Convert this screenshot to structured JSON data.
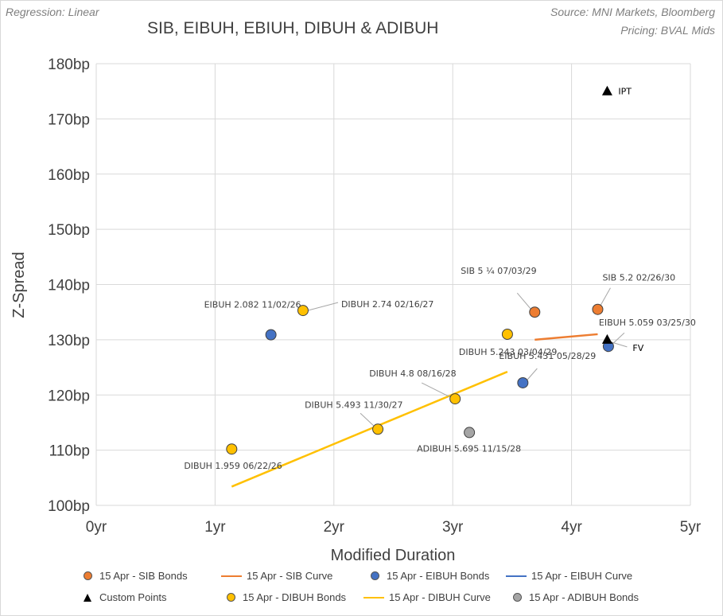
{
  "header": {
    "regression": "Regression: Linear",
    "source": "Source: MNI Markets, Bloomberg",
    "pricing": "Pricing: BVAL Mids"
  },
  "chart_data": {
    "type": "scatter",
    "title": "SIB, EIBUH, EBIUH, DIBUH & ADIBUH",
    "xlabel": "Modified Duration",
    "ylabel": "Z-Spread",
    "xlim": [
      0,
      5
    ],
    "ylim": [
      100,
      180
    ],
    "x_ticks": [
      0,
      1,
      2,
      3,
      4,
      5
    ],
    "x_tick_labels": [
      "0yr",
      "1yr",
      "2yr",
      "3yr",
      "4yr",
      "5yr"
    ],
    "y_ticks": [
      100,
      110,
      120,
      130,
      140,
      150,
      160,
      170,
      180
    ],
    "y_tick_labels": [
      "100bp",
      "110bp",
      "120bp",
      "130bp",
      "140bp",
      "150bp",
      "160bp",
      "170bp",
      "180bp"
    ],
    "grid": true,
    "legend_position": "bottom",
    "series": [
      {
        "name": "15 Apr - SIB Bonds",
        "kind": "points",
        "color": "#ED7D31",
        "points": [
          {
            "x": 3.69,
            "y": 135.0,
            "label": "SIB 5 ¼ 07/03/29"
          },
          {
            "x": 4.22,
            "y": 135.5,
            "label": "SIB 5.2 02/26/30"
          }
        ]
      },
      {
        "name": "15 Apr - SIB Curve",
        "kind": "line",
        "color": "#ED7D31",
        "line": [
          {
            "x": 3.69,
            "y": 130.0
          },
          {
            "x": 4.22,
            "y": 131.0
          }
        ]
      },
      {
        "name": "15 Apr - EIBUH Bonds",
        "kind": "points",
        "color": "#4472C4",
        "points": [
          {
            "x": 1.47,
            "y": 130.9,
            "label": "EIBUH 2.082 11/02/26"
          },
          {
            "x": 3.59,
            "y": 122.2,
            "label": "EIBUH 5.431 05/28/29"
          },
          {
            "x": 4.31,
            "y": 128.8,
            "label": "EIBUH 5.059 03/25/30"
          }
        ]
      },
      {
        "name": "15 Apr - EIBUH Curve",
        "kind": "line",
        "color": "#4472C4",
        "line": []
      },
      {
        "name": "Custom Points",
        "kind": "triangles",
        "color": "#000000",
        "points": [
          {
            "x": 4.3,
            "y": 175.0,
            "label": "IPT"
          },
          {
            "x": 4.3,
            "y": 130.0,
            "label": "FV"
          }
        ]
      },
      {
        "name": "15 Apr - DIBUH Bonds",
        "kind": "points",
        "color": "#FFC000",
        "points": [
          {
            "x": 1.14,
            "y": 110.2,
            "label": "DIBUH 1.959 06/22/26"
          },
          {
            "x": 1.74,
            "y": 135.3,
            "label": "DIBUH 2.74 02/16/27"
          },
          {
            "x": 2.37,
            "y": 113.8,
            "label": "DIBUH 5.493 11/30/27"
          },
          {
            "x": 3.02,
            "y": 119.3,
            "label": "DIBUH 4.8 08/16/28"
          },
          {
            "x": 3.46,
            "y": 131.0,
            "label": "DIBUH 5.243 03/04/29"
          }
        ]
      },
      {
        "name": "15 Apr - DIBUH Curve",
        "kind": "line",
        "color": "#FFC000",
        "line": [
          {
            "x": 1.14,
            "y": 103.4
          },
          {
            "x": 3.46,
            "y": 124.2
          }
        ]
      },
      {
        "name": "15 Apr - ADIBUH Bonds",
        "kind": "points",
        "color": "#A5A5A5",
        "points": [
          {
            "x": 3.14,
            "y": 113.2,
            "label": "ADIBUH 5.695 11/15/28"
          }
        ]
      }
    ]
  }
}
